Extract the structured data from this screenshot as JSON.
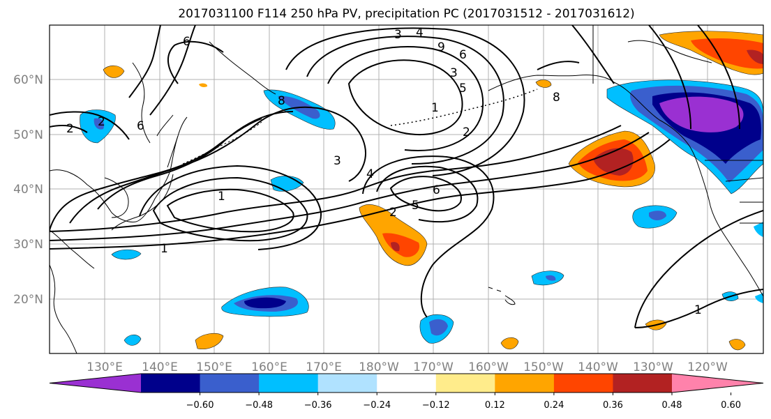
{
  "title": "2017031100 F114 250 hPa PV, precipitation PC (2017031512 - 2017031612)",
  "map": {
    "lon_labels": [
      "130°E",
      "140°E",
      "150°E",
      "160°E",
      "170°E",
      "180°W",
      "170°W",
      "160°W",
      "150°W",
      "140°W",
      "130°W",
      "120°W"
    ],
    "lat_labels": [
      "60°N",
      "50°N",
      "40°N",
      "30°N",
      "20°N"
    ],
    "contour_labels": [
      "6",
      "2",
      "2",
      "6",
      "8",
      "9",
      "3",
      "5",
      "4",
      "1",
      "2",
      "6",
      "1",
      "3",
      "4",
      "3",
      "2",
      "1",
      "6",
      "5",
      "8",
      "1"
    ]
  },
  "colorbar": {
    "ticks": [
      "−0.60",
      "−0.48",
      "−0.36",
      "−0.24",
      "−0.12",
      "0.12",
      "0.24",
      "0.36",
      "0.48",
      "0.60"
    ],
    "colors": [
      "#9a30d2",
      "#00008b",
      "#3a5fcd",
      "#00bfff",
      "#b0e2ff",
      "#ffffff",
      "#ffec8b",
      "#ffa500",
      "#ff4500",
      "#b22222",
      "#ff82ab"
    ]
  }
}
